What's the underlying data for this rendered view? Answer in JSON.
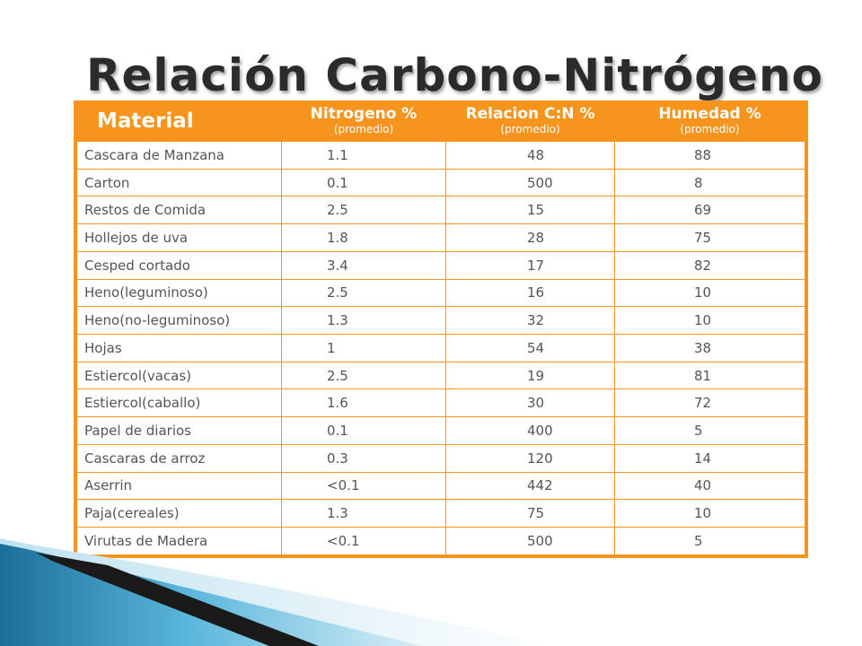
{
  "slide": {
    "title": "Relación Carbono-Nitrógeno"
  },
  "table": {
    "headers": {
      "material": "Material",
      "nitrogen_main": "Nitrogeno %",
      "nitrogen_sub": "(promedio)",
      "ratio_main": "Relacion C:N %",
      "ratio_sub": "(promedio)",
      "humidity_main": "Humedad %",
      "humidity_sub": "(promedio)"
    },
    "rows": [
      {
        "material": "Cascara de Manzana",
        "nitrogen": "1.1",
        "ratio": "48",
        "humidity": "88"
      },
      {
        "material": "Carton",
        "nitrogen": "0.1",
        "ratio": "500",
        "humidity": "8"
      },
      {
        "material": "Restos de Comida",
        "nitrogen": "2.5",
        "ratio": "15",
        "humidity": "69"
      },
      {
        "material": "Hollejos de uva",
        "nitrogen": "1.8",
        "ratio": "28",
        "humidity": "75"
      },
      {
        "material": "Cesped cortado",
        "nitrogen": "3.4",
        "ratio": "17",
        "humidity": "82"
      },
      {
        "material": "Heno(leguminoso)",
        "nitrogen": "2.5",
        "ratio": "16",
        "humidity": "10"
      },
      {
        "material": "Heno(no-leguminoso)",
        "nitrogen": "1.3",
        "ratio": "32",
        "humidity": "10"
      },
      {
        "material": "Hojas",
        "nitrogen": "1",
        "ratio": "54",
        "humidity": "38"
      },
      {
        "material": "Estiercol(vacas)",
        "nitrogen": "2.5",
        "ratio": "19",
        "humidity": "81"
      },
      {
        "material": "Estiercol(caballo)",
        "nitrogen": "1.6",
        "ratio": "30",
        "humidity": "72"
      },
      {
        "material": "Papel de diarios",
        "nitrogen": "0.1",
        "ratio": "400",
        "humidity": "5"
      },
      {
        "material": "Cascaras de arroz",
        "nitrogen": "0.3",
        "ratio": "120",
        "humidity": "14"
      },
      {
        "material": "Aserrin",
        "nitrogen": "<0.1",
        "ratio": "442",
        "humidity": "40"
      },
      {
        "material": "Paja(cereales)",
        "nitrogen": "1.3",
        "ratio": "75",
        "humidity": "10"
      },
      {
        "material": "Virutas de Madera",
        "nitrogen": "<0.1",
        "ratio": "500",
        "humidity": "5"
      }
    ]
  },
  "colors": {
    "accent_orange": "#f7941d",
    "title_text": "#2b2b2b",
    "cell_text": "#555555",
    "deco_blue_dark": "#1a6f9a",
    "deco_blue_light": "#5bb7dc",
    "deco_dark": "#1a1a1a"
  }
}
